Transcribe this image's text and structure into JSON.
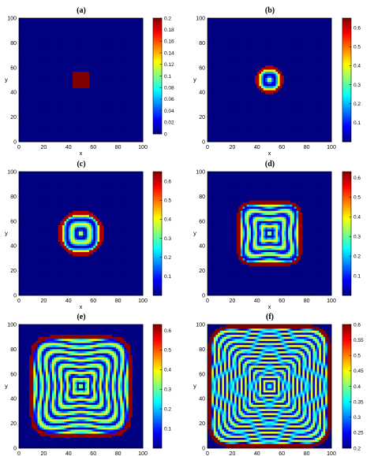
{
  "chart_data": [
    {
      "type": "heatmap",
      "panel_label": "(a)",
      "xlabel": "x",
      "ylabel": "y",
      "xlim": [
        0,
        100
      ],
      "ylim": [
        0,
        100
      ],
      "x_ticks": [
        "0",
        "20",
        "40",
        "60",
        "80",
        "100"
      ],
      "y_ticks": [
        "0",
        "20",
        "40",
        "60",
        "80",
        "100"
      ],
      "colorbar": {
        "min": 0,
        "max": 0.2,
        "ticks": [
          "0",
          "0.02",
          "0.04",
          "0.06",
          "0.08",
          "0.1",
          "0.12",
          "0.14",
          "0.16",
          "0.18",
          "0.2"
        ]
      },
      "background_value": 0,
      "pattern": {
        "shape": "square",
        "center": [
          50,
          50
        ],
        "half_width_initial": 7,
        "front_half_width": 7,
        "rings": 0,
        "inner_value": 0.2
      }
    },
    {
      "type": "heatmap",
      "panel_label": "(b)",
      "xlabel": "x",
      "ylabel": "y",
      "xlim": [
        0,
        100
      ],
      "ylim": [
        0,
        100
      ],
      "x_ticks": [
        "0",
        "20",
        "40",
        "60",
        "80",
        "100"
      ],
      "y_ticks": [
        "0",
        "20",
        "40",
        "60",
        "80",
        "100"
      ],
      "colorbar": {
        "min": 0,
        "max": 0.65,
        "ticks": [
          "0.1",
          "0.2",
          "0.3",
          "0.4",
          "0.5",
          "0.6"
        ]
      },
      "background_value": 0,
      "pattern": {
        "shape": "cross",
        "center": [
          50,
          50
        ],
        "front_half_width": 10,
        "rings": 1,
        "edge_value": 0.62
      }
    },
    {
      "type": "heatmap",
      "panel_label": "(c)",
      "xlabel": "x",
      "ylabel": "y",
      "xlim": [
        0,
        100
      ],
      "ylim": [
        0,
        100
      ],
      "x_ticks": [
        "0",
        "20",
        "40",
        "60",
        "80",
        "100"
      ],
      "y_ticks": [
        "0",
        "20",
        "40",
        "60",
        "80",
        "100"
      ],
      "colorbar": {
        "min": 0,
        "max": 0.65,
        "ticks": [
          "0.1",
          "0.2",
          "0.3",
          "0.4",
          "0.5",
          "0.6"
        ]
      },
      "background_value": 0,
      "pattern": {
        "shape": "cross",
        "center": [
          50,
          50
        ],
        "front_half_width": 17,
        "rings": 2,
        "edge_value": 0.62
      }
    },
    {
      "type": "heatmap",
      "panel_label": "(d)",
      "xlabel": "x",
      "ylabel": "y",
      "xlim": [
        0,
        100
      ],
      "ylim": [
        0,
        100
      ],
      "x_ticks": [
        "0",
        "20",
        "40",
        "60",
        "80",
        "100"
      ],
      "y_ticks": [
        "0",
        "20",
        "40",
        "60",
        "80",
        "100"
      ],
      "colorbar": {
        "min": 0,
        "max": 0.63,
        "ticks": [
          "0.1",
          "0.2",
          "0.3",
          "0.4",
          "0.5",
          "0.6"
        ]
      },
      "background_value": 0,
      "pattern": {
        "shape": "rounded-square",
        "center": [
          50,
          50
        ],
        "front_half_width": 25,
        "rings": 4,
        "edge_value": 0.62
      }
    },
    {
      "type": "heatmap",
      "panel_label": "(e)",
      "xlabel": "x",
      "ylabel": "y",
      "xlim": [
        0,
        100
      ],
      "ylim": [
        0,
        100
      ],
      "x_ticks": [
        "0",
        "20",
        "40",
        "60",
        "80",
        "100"
      ],
      "y_ticks": [
        "0",
        "20",
        "40",
        "60",
        "80",
        "100"
      ],
      "colorbar": {
        "min": 0,
        "max": 0.63,
        "ticks": [
          "0.1",
          "0.2",
          "0.3",
          "0.4",
          "0.5",
          "0.6"
        ]
      },
      "background_value": 0,
      "pattern": {
        "shape": "rounded-square",
        "center": [
          50,
          50
        ],
        "front_half_width": 40,
        "rings": 7,
        "edge_value": 0.62
      }
    },
    {
      "type": "heatmap",
      "panel_label": "(f)",
      "xlabel": "x",
      "ylabel": "y",
      "xlim": [
        0,
        100
      ],
      "ylim": [
        0,
        100
      ],
      "x_ticks": [
        "0",
        "20",
        "40",
        "60",
        "80",
        "100"
      ],
      "y_ticks": [
        "0",
        "20",
        "40",
        "60",
        "80",
        "100"
      ],
      "colorbar": {
        "min": 0.2,
        "max": 0.6,
        "ticks": [
          "0.2",
          "0.25",
          "0.3",
          "0.35",
          "0.4",
          "0.45",
          "0.5",
          "0.55",
          "0.6"
        ]
      },
      "background_value": 0.2,
      "pattern": {
        "shape": "rounded-square",
        "center": [
          50,
          50
        ],
        "front_half_width": 49,
        "rings": 12,
        "edge_value": 0.6
      }
    }
  ]
}
